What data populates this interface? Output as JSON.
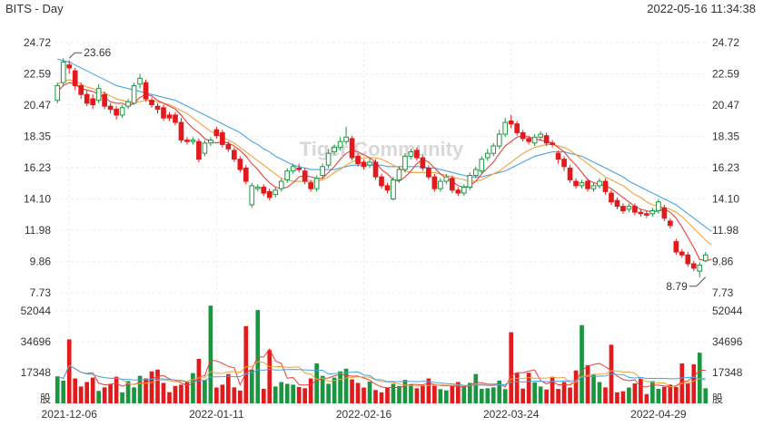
{
  "header": {
    "title": "BITS - Day",
    "timestamp": "2022-05-16 11:34:38"
  },
  "watermark": "Tiger Community",
  "colors": {
    "up": "#1a9641",
    "down": "#e31a1c",
    "ma5": "#e8403a",
    "ma10": "#f4a13b",
    "ma20": "#4aa3df",
    "vol_ma1": "#e8403a",
    "vol_ma2": "#f4a13b",
    "vol_ma3": "#4aa3df"
  },
  "chart_data": [
    {
      "type": "candlestick",
      "y_ticks": [
        "24.72",
        "22.59",
        "20.47",
        "18.35",
        "16.23",
        "14.10",
        "11.98",
        "9.86",
        "7.73"
      ],
      "ylim": [
        7.73,
        24.72
      ],
      "x_ticks": [
        {
          "label": "2021-12-06",
          "index": 2
        },
        {
          "label": "2022-01-11",
          "index": 27
        },
        {
          "label": "2022-02-16",
          "index": 52
        },
        {
          "label": "2022-03-24",
          "index": 77
        },
        {
          "label": "2022-04-29",
          "index": 102
        }
      ],
      "annotations": [
        {
          "text": "23.66",
          "index": 2,
          "value": 23.66
        },
        {
          "text": "8.79",
          "index": 110,
          "value": 8.79
        }
      ],
      "candles": [
        [
          20.8,
          21.8,
          22.0,
          20.6
        ],
        [
          22.0,
          23.4,
          23.66,
          21.8
        ],
        [
          23.2,
          23.0,
          23.5,
          22.6
        ],
        [
          22.8,
          21.8,
          23.0,
          21.5
        ],
        [
          21.8,
          21.2,
          22.0,
          20.9
        ],
        [
          21.2,
          20.6,
          21.5,
          20.4
        ],
        [
          20.9,
          20.5,
          21.2,
          20.2
        ],
        [
          20.8,
          21.6,
          21.9,
          20.6
        ],
        [
          21.2,
          20.4,
          21.4,
          20.2
        ],
        [
          20.4,
          20.2,
          20.6,
          19.9
        ],
        [
          20.2,
          19.8,
          20.4,
          19.5
        ],
        [
          19.8,
          20.3,
          20.5,
          19.6
        ],
        [
          20.4,
          20.7,
          20.9,
          20.2
        ],
        [
          20.6,
          21.8,
          22.0,
          20.5
        ],
        [
          21.9,
          22.3,
          22.6,
          21.6
        ],
        [
          22.0,
          20.9,
          22.2,
          20.7
        ],
        [
          20.8,
          20.5,
          21.0,
          20.3
        ],
        [
          20.4,
          20.2,
          20.6,
          19.9
        ],
        [
          20.3,
          19.6,
          20.5,
          19.4
        ],
        [
          19.8,
          19.6,
          20.0,
          19.4
        ],
        [
          19.8,
          19.3,
          20.0,
          19.1
        ],
        [
          19.3,
          18.1,
          19.6,
          17.9
        ],
        [
          18.1,
          18.0,
          18.3,
          17.8
        ],
        [
          18.0,
          18.1,
          18.3,
          17.8
        ],
        [
          18.0,
          16.8,
          18.2,
          16.6
        ],
        [
          17.2,
          17.9,
          18.1,
          17.0
        ],
        [
          17.9,
          18.1,
          18.3,
          17.7
        ],
        [
          18.8,
          18.4,
          19.0,
          18.2
        ],
        [
          18.6,
          17.8,
          18.8,
          17.6
        ],
        [
          17.8,
          17.5,
          18.0,
          17.3
        ],
        [
          17.4,
          16.8,
          17.6,
          16.6
        ],
        [
          16.8,
          16.1,
          17.0,
          15.9
        ],
        [
          16.2,
          15.3,
          16.4,
          15.1
        ],
        [
          13.7,
          15.0,
          15.2,
          13.5
        ],
        [
          14.8,
          14.9,
          15.1,
          14.6
        ],
        [
          14.9,
          14.5,
          15.1,
          14.3
        ],
        [
          14.6,
          14.2,
          14.8,
          14.0
        ],
        [
          14.4,
          14.7,
          14.9,
          14.2
        ],
        [
          14.8,
          15.3,
          15.5,
          14.6
        ],
        [
          15.4,
          16.0,
          16.2,
          15.2
        ],
        [
          16.0,
          16.3,
          16.5,
          15.8
        ],
        [
          16.2,
          16.1,
          16.5,
          15.9
        ],
        [
          16.0,
          15.3,
          16.2,
          15.1
        ],
        [
          15.2,
          14.8,
          15.4,
          14.6
        ],
        [
          14.8,
          15.5,
          15.7,
          14.6
        ],
        [
          15.7,
          16.3,
          16.5,
          15.5
        ],
        [
          16.4,
          17.2,
          17.5,
          16.2
        ],
        [
          17.3,
          17.6,
          17.8,
          17.1
        ],
        [
          17.6,
          18.0,
          18.3,
          17.4
        ],
        [
          18.0,
          18.3,
          19.0,
          17.8
        ],
        [
          18.2,
          16.9,
          18.4,
          16.7
        ],
        [
          17.0,
          16.5,
          17.2,
          16.3
        ],
        [
          16.6,
          16.3,
          16.8,
          16.1
        ],
        [
          16.4,
          16.6,
          16.9,
          16.2
        ],
        [
          16.6,
          15.6,
          16.8,
          15.4
        ],
        [
          15.6,
          15.0,
          15.8,
          14.8
        ],
        [
          15.0,
          14.7,
          15.2,
          14.5
        ],
        [
          14.1,
          15.4,
          15.6,
          14.0
        ],
        [
          15.4,
          16.1,
          16.3,
          15.2
        ],
        [
          16.1,
          17.0,
          17.2,
          15.9
        ],
        [
          17.0,
          17.3,
          17.5,
          16.8
        ],
        [
          17.4,
          16.9,
          17.6,
          16.7
        ],
        [
          16.9,
          16.2,
          17.1,
          16.0
        ],
        [
          16.2,
          15.6,
          16.4,
          15.4
        ],
        [
          15.6,
          14.8,
          15.8,
          14.6
        ],
        [
          14.8,
          15.3,
          15.5,
          14.6
        ],
        [
          15.3,
          15.6,
          15.8,
          15.1
        ],
        [
          15.5,
          14.7,
          15.7,
          14.5
        ],
        [
          14.7,
          14.5,
          14.9,
          14.3
        ],
        [
          14.5,
          14.9,
          15.1,
          14.3
        ],
        [
          14.9,
          15.7,
          15.9,
          14.7
        ],
        [
          15.7,
          16.1,
          16.3,
          15.5
        ],
        [
          16.0,
          16.8,
          17.0,
          15.8
        ],
        [
          16.9,
          17.2,
          17.5,
          16.7
        ],
        [
          17.2,
          17.7,
          17.9,
          17.0
        ],
        [
          17.7,
          18.5,
          18.8,
          17.5
        ],
        [
          18.5,
          19.3,
          19.6,
          18.3
        ],
        [
          19.4,
          19.2,
          19.8,
          18.9
        ],
        [
          19.2,
          18.6,
          19.4,
          18.4
        ],
        [
          18.6,
          18.2,
          18.8,
          18.0
        ],
        [
          18.2,
          18.0,
          18.4,
          17.8
        ],
        [
          17.9,
          18.3,
          18.5,
          17.7
        ],
        [
          18.3,
          18.5,
          18.7,
          18.1
        ],
        [
          18.4,
          17.9,
          18.6,
          17.7
        ],
        [
          17.9,
          17.8,
          18.1,
          17.6
        ],
        [
          17.2,
          16.8,
          17.4,
          16.5
        ],
        [
          16.8,
          16.3,
          17.0,
          16.0
        ],
        [
          16.2,
          15.4,
          16.4,
          15.2
        ],
        [
          15.3,
          15.0,
          15.5,
          14.8
        ],
        [
          15.0,
          15.2,
          15.4,
          14.8
        ],
        [
          15.3,
          14.8,
          15.5,
          14.6
        ],
        [
          14.8,
          15.0,
          15.2,
          14.6
        ],
        [
          15.0,
          15.3,
          15.5,
          14.8
        ],
        [
          15.3,
          14.6,
          15.5,
          14.4
        ],
        [
          14.5,
          13.9,
          14.7,
          13.7
        ],
        [
          14.0,
          13.6,
          14.2,
          13.4
        ],
        [
          13.6,
          13.3,
          13.8,
          13.1
        ],
        [
          13.4,
          13.6,
          13.8,
          13.2
        ],
        [
          13.6,
          13.2,
          13.8,
          13.0
        ],
        [
          13.2,
          13.1,
          13.4,
          12.9
        ],
        [
          13.1,
          13.0,
          13.3,
          12.8
        ],
        [
          13.1,
          13.3,
          13.5,
          12.9
        ],
        [
          13.3,
          13.9,
          14.1,
          13.1
        ],
        [
          13.5,
          12.8,
          13.7,
          12.6
        ],
        [
          12.6,
          12.3,
          12.8,
          12.1
        ],
        [
          11.2,
          10.5,
          11.4,
          10.3
        ],
        [
          10.5,
          10.3,
          10.7,
          10.1
        ],
        [
          10.3,
          9.7,
          10.5,
          9.5
        ],
        [
          9.7,
          9.4,
          9.9,
          9.2
        ],
        [
          9.2,
          9.6,
          9.8,
          8.79
        ],
        [
          9.9,
          10.3,
          10.5,
          9.8
        ]
      ],
      "ma5": [
        21.4,
        21.8,
        22.0,
        21.9,
        21.6,
        21.5,
        21.4,
        21.2,
        21.0,
        20.7,
        20.6,
        20.6,
        20.4,
        20.6,
        21.0,
        21.2,
        21.1,
        20.8,
        20.6,
        20.4,
        20.2,
        19.8,
        19.3,
        18.9,
        18.6,
        18.2,
        18.0,
        17.9,
        18.0,
        17.9,
        17.7,
        17.4,
        17.0,
        16.5,
        16.1,
        15.6,
        15.2,
        14.9,
        14.8,
        14.9,
        15.2,
        15.6,
        15.7,
        15.6,
        15.5,
        15.5,
        15.9,
        16.3,
        16.8,
        17.2,
        17.4,
        17.3,
        17.1,
        16.9,
        16.6,
        16.1,
        15.8,
        15.4,
        15.3,
        15.6,
        16.0,
        16.5,
        16.8,
        16.6,
        16.2,
        15.8,
        15.5,
        15.3,
        15.0,
        14.9,
        15.0,
        15.3,
        15.8,
        16.2,
        16.6,
        17.2,
        17.7,
        18.0,
        18.3,
        18.4,
        18.3,
        18.2,
        18.1,
        18.0,
        17.9,
        17.6,
        17.3,
        16.8,
        16.4,
        15.9,
        15.4,
        15.2,
        15.1,
        15.0,
        14.8,
        14.5,
        14.2,
        13.9,
        13.6,
        13.4,
        13.3,
        13.2,
        13.3,
        13.4,
        13.2,
        12.8,
        12.2,
        11.5,
        10.8,
        10.0,
        9.9,
        10.0
      ],
      "ma10": [
        21.9,
        22.1,
        22.2,
        22.1,
        21.9,
        21.7,
        21.6,
        21.4,
        21.3,
        21.1,
        20.9,
        20.8,
        20.7,
        20.7,
        20.7,
        20.8,
        20.8,
        20.7,
        20.6,
        20.5,
        20.3,
        20.1,
        19.9,
        19.6,
        19.3,
        19.0,
        18.7,
        18.5,
        18.3,
        18.1,
        17.9,
        17.6,
        17.3,
        17.0,
        16.7,
        16.4,
        16.1,
        15.8,
        15.5,
        15.4,
        15.3,
        15.3,
        15.3,
        15.3,
        15.3,
        15.4,
        15.6,
        15.9,
        16.1,
        16.4,
        16.6,
        16.8,
        16.9,
        16.9,
        16.9,
        16.8,
        16.6,
        16.4,
        16.2,
        16.0,
        15.9,
        15.9,
        15.9,
        15.9,
        15.9,
        15.8,
        15.7,
        15.6,
        15.5,
        15.4,
        15.3,
        15.3,
        15.4,
        15.6,
        15.8,
        16.0,
        16.3,
        16.6,
        16.9,
        17.2,
        17.4,
        17.6,
        17.7,
        17.8,
        17.8,
        17.7,
        17.6,
        17.4,
        17.1,
        16.8,
        16.5,
        16.2,
        15.9,
        15.6,
        15.4,
        15.2,
        15.0,
        14.7,
        14.4,
        14.2,
        13.9,
        13.7,
        13.6,
        13.5,
        13.4,
        13.2,
        12.9,
        12.5,
        12.1,
        11.7,
        11.3,
        11.0
      ],
      "ma20": [
        23.6,
        23.5,
        23.4,
        23.2,
        23.0,
        22.8,
        22.6,
        22.4,
        22.2,
        22.0,
        21.8,
        21.7,
        21.6,
        21.5,
        21.4,
        21.3,
        21.2,
        21.1,
        21.0,
        20.9,
        20.8,
        20.6,
        20.4,
        20.2,
        20.0,
        19.8,
        19.6,
        19.4,
        19.2,
        19.0,
        18.8,
        18.6,
        18.3,
        18.0,
        17.8,
        17.5,
        17.3,
        17.0,
        16.8,
        16.6,
        16.4,
        16.3,
        16.2,
        16.1,
        16.1,
        16.1,
        16.1,
        16.1,
        16.2,
        16.3,
        16.4,
        16.4,
        16.4,
        16.4,
        16.4,
        16.4,
        16.3,
        16.3,
        16.3,
        16.3,
        16.3,
        16.3,
        16.3,
        16.2,
        16.2,
        16.1,
        16.0,
        15.9,
        15.8,
        15.7,
        15.6,
        15.6,
        15.6,
        15.7,
        15.8,
        15.9,
        16.0,
        16.2,
        16.4,
        16.6,
        16.8,
        17.0,
        17.1,
        17.2,
        17.3,
        17.3,
        17.3,
        17.2,
        17.1,
        17.0,
        16.8,
        16.6,
        16.4,
        16.2,
        16.0,
        15.8,
        15.6,
        15.3,
        15.1,
        14.9,
        14.7,
        14.5,
        14.3,
        14.1,
        13.9,
        13.7,
        13.4,
        13.1,
        12.8,
        12.5,
        12.2,
        11.9
      ]
    },
    {
      "type": "bar",
      "y_ticks": [
        "52044",
        "34696",
        "17348"
      ],
      "ylim": [
        0,
        52044
      ],
      "unit_label": "股",
      "volumes": [
        15200,
        12800,
        36000,
        14000,
        9500,
        12000,
        14500,
        7000,
        9000,
        11000,
        15000,
        6200,
        12500,
        9000,
        15500,
        14000,
        18000,
        19000,
        11500,
        6300,
        9800,
        10500,
        12200,
        17000,
        25000,
        13200,
        55000,
        8900,
        10500,
        16500,
        9000,
        7200,
        43500,
        19000,
        52500,
        8200,
        30000,
        9500,
        12000,
        11000,
        10500,
        9200,
        8500,
        14000,
        22500,
        15500,
        11000,
        14500,
        18000,
        19500,
        13500,
        11500,
        8900,
        12200,
        7500,
        6200,
        9000,
        11000,
        9800,
        13200,
        10500,
        8500,
        10200,
        14000,
        9800,
        8000,
        7300,
        10000,
        12000,
        9500,
        11500,
        16500,
        8200,
        8500,
        9000,
        12800,
        8000,
        40000,
        17000,
        8300,
        17200,
        11800,
        9500,
        7800,
        15000,
        8100,
        12000,
        8900,
        18500,
        44000,
        21500,
        16500,
        12000,
        9000,
        33000,
        6200,
        6800,
        8900,
        11200,
        14000,
        5200,
        12500,
        8200,
        9300,
        10500,
        9200,
        22500,
        11200,
        22000,
        28500,
        8500
      ]
    }
  ]
}
